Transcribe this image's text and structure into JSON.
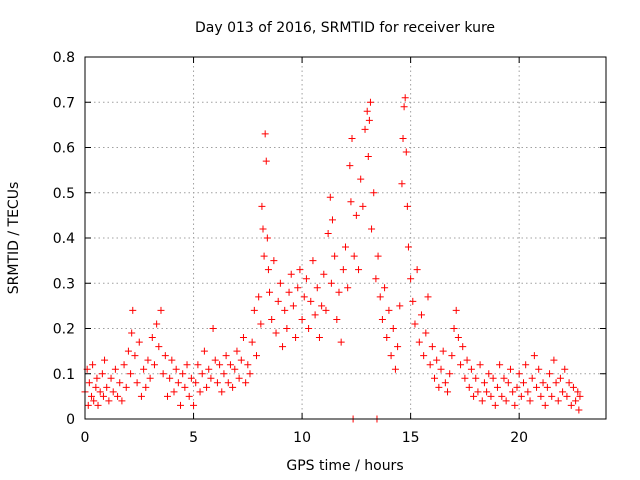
{
  "chart_data": {
    "type": "scatter",
    "title": "Day 013 of 2016, SRMTID for receiver kure",
    "xlabel": "GPS time / hours",
    "ylabel": "SRMTID / TECUs",
    "xlim": [
      0,
      24
    ],
    "ylim": [
      0,
      0.8
    ],
    "xticks": [
      0,
      5,
      10,
      15,
      20
    ],
    "yticks": [
      0,
      0.1,
      0.2,
      0.3,
      0.4,
      0.5,
      0.6,
      0.7,
      0.8
    ],
    "xtick_labels": [
      "0",
      "5",
      "10",
      "15",
      "20"
    ],
    "ytick_labels": [
      "0",
      "0.1",
      "0.2",
      "0.3",
      "0.4",
      "0.5",
      "0.6",
      "0.7",
      "0.8"
    ],
    "grid": true,
    "marker": "+",
    "color": "#ff0000",
    "series": [
      {
        "name": "SRMTID",
        "points": [
          [
            0.0,
            0.06
          ],
          [
            0.1,
            0.11
          ],
          [
            0.15,
            0.03
          ],
          [
            0.2,
            0.08
          ],
          [
            0.3,
            0.05
          ],
          [
            0.35,
            0.12
          ],
          [
            0.4,
            0.04
          ],
          [
            0.5,
            0.07
          ],
          [
            0.55,
            0.09
          ],
          [
            0.6,
            0.03
          ],
          [
            0.7,
            0.06
          ],
          [
            0.8,
            0.1
          ],
          [
            0.85,
            0.05
          ],
          [
            0.9,
            0.13
          ],
          [
            1.0,
            0.07
          ],
          [
            1.1,
            0.04
          ],
          [
            1.2,
            0.09
          ],
          [
            1.3,
            0.06
          ],
          [
            1.4,
            0.11
          ],
          [
            1.5,
            0.05
          ],
          [
            1.6,
            0.08
          ],
          [
            1.7,
            0.04
          ],
          [
            1.8,
            0.12
          ],
          [
            1.9,
            0.07
          ],
          [
            2.0,
            0.15
          ],
          [
            2.1,
            0.1
          ],
          [
            2.15,
            0.19
          ],
          [
            2.2,
            0.24
          ],
          [
            2.3,
            0.14
          ],
          [
            2.4,
            0.08
          ],
          [
            2.5,
            0.17
          ],
          [
            2.6,
            0.05
          ],
          [
            2.7,
            0.11
          ],
          [
            2.8,
            0.07
          ],
          [
            2.9,
            0.13
          ],
          [
            3.0,
            0.09
          ],
          [
            3.1,
            0.18
          ],
          [
            3.2,
            0.12
          ],
          [
            3.3,
            0.21
          ],
          [
            3.4,
            0.16
          ],
          [
            3.5,
            0.24
          ],
          [
            3.6,
            0.1
          ],
          [
            3.7,
            0.14
          ],
          [
            3.8,
            0.05
          ],
          [
            3.9,
            0.09
          ],
          [
            4.0,
            0.13
          ],
          [
            4.1,
            0.06
          ],
          [
            4.2,
            0.11
          ],
          [
            4.3,
            0.08
          ],
          [
            4.4,
            0.03
          ],
          [
            4.5,
            0.1
          ],
          [
            4.6,
            0.07
          ],
          [
            4.7,
            0.12
          ],
          [
            4.8,
            0.05
          ],
          [
            4.9,
            0.09
          ],
          [
            5.0,
            0.03
          ],
          [
            5.1,
            0.08
          ],
          [
            5.2,
            0.12
          ],
          [
            5.3,
            0.06
          ],
          [
            5.4,
            0.1
          ],
          [
            5.5,
            0.15
          ],
          [
            5.6,
            0.07
          ],
          [
            5.7,
            0.11
          ],
          [
            5.8,
            0.09
          ],
          [
            5.9,
            0.2
          ],
          [
            6.0,
            0.13
          ],
          [
            6.1,
            0.08
          ],
          [
            6.2,
            0.12
          ],
          [
            6.3,
            0.06
          ],
          [
            6.4,
            0.1
          ],
          [
            6.5,
            0.14
          ],
          [
            6.6,
            0.08
          ],
          [
            6.7,
            0.12
          ],
          [
            6.8,
            0.07
          ],
          [
            6.9,
            0.11
          ],
          [
            7.0,
            0.15
          ],
          [
            7.1,
            0.09
          ],
          [
            7.2,
            0.13
          ],
          [
            7.3,
            0.18
          ],
          [
            7.4,
            0.08
          ],
          [
            7.5,
            0.12
          ],
          [
            7.6,
            0.1
          ],
          [
            7.7,
            0.17
          ],
          [
            7.8,
            0.24
          ],
          [
            7.9,
            0.14
          ],
          [
            8.0,
            0.27
          ],
          [
            8.1,
            0.21
          ],
          [
            8.15,
            0.47
          ],
          [
            8.2,
            0.42
          ],
          [
            8.25,
            0.36
          ],
          [
            8.3,
            0.63
          ],
          [
            8.35,
            0.57
          ],
          [
            8.4,
            0.4
          ],
          [
            8.45,
            0.33
          ],
          [
            8.5,
            0.28
          ],
          [
            8.6,
            0.22
          ],
          [
            8.7,
            0.35
          ],
          [
            8.8,
            0.19
          ],
          [
            8.9,
            0.26
          ],
          [
            9.0,
            0.3
          ],
          [
            9.1,
            0.16
          ],
          [
            9.2,
            0.24
          ],
          [
            9.3,
            0.2
          ],
          [
            9.4,
            0.28
          ],
          [
            9.5,
            0.32
          ],
          [
            9.6,
            0.25
          ],
          [
            9.7,
            0.18
          ],
          [
            9.8,
            0.29
          ],
          [
            9.9,
            0.33
          ],
          [
            10.0,
            0.22
          ],
          [
            10.1,
            0.27
          ],
          [
            10.2,
            0.31
          ],
          [
            10.3,
            0.2
          ],
          [
            10.4,
            0.26
          ],
          [
            10.5,
            0.35
          ],
          [
            10.6,
            0.23
          ],
          [
            10.7,
            0.29
          ],
          [
            10.8,
            0.18
          ],
          [
            10.9,
            0.25
          ],
          [
            11.0,
            0.32
          ],
          [
            11.1,
            0.24
          ],
          [
            11.2,
            0.41
          ],
          [
            11.3,
            0.49
          ],
          [
            11.35,
            0.3
          ],
          [
            11.4,
            0.44
          ],
          [
            11.5,
            0.36
          ],
          [
            11.6,
            0.22
          ],
          [
            11.7,
            0.28
          ],
          [
            11.8,
            0.17
          ],
          [
            11.9,
            0.33
          ],
          [
            12.0,
            0.38
          ],
          [
            12.1,
            0.29
          ],
          [
            12.2,
            0.56
          ],
          [
            12.25,
            0.48
          ],
          [
            12.3,
            0.62
          ],
          [
            12.35,
            0.0
          ],
          [
            12.4,
            0.36
          ],
          [
            12.5,
            0.45
          ],
          [
            12.6,
            0.33
          ],
          [
            12.7,
            0.53
          ],
          [
            12.8,
            0.47
          ],
          [
            12.9,
            0.64
          ],
          [
            13.0,
            0.68
          ],
          [
            13.05,
            0.58
          ],
          [
            13.1,
            0.66
          ],
          [
            13.15,
            0.7
          ],
          [
            13.2,
            0.42
          ],
          [
            13.3,
            0.5
          ],
          [
            13.4,
            0.31
          ],
          [
            13.45,
            0.0
          ],
          [
            13.5,
            0.36
          ],
          [
            13.6,
            0.27
          ],
          [
            13.7,
            0.22
          ],
          [
            13.8,
            0.29
          ],
          [
            13.9,
            0.18
          ],
          [
            14.0,
            0.24
          ],
          [
            14.1,
            0.14
          ],
          [
            14.2,
            0.2
          ],
          [
            14.3,
            0.11
          ],
          [
            14.4,
            0.16
          ],
          [
            14.5,
            0.25
          ],
          [
            14.6,
            0.52
          ],
          [
            14.65,
            0.62
          ],
          [
            14.7,
            0.69
          ],
          [
            14.75,
            0.71
          ],
          [
            14.8,
            0.59
          ],
          [
            14.85,
            0.47
          ],
          [
            14.9,
            0.38
          ],
          [
            15.0,
            0.31
          ],
          [
            15.1,
            0.26
          ],
          [
            15.2,
            0.21
          ],
          [
            15.3,
            0.33
          ],
          [
            15.4,
            0.17
          ],
          [
            15.5,
            0.23
          ],
          [
            15.6,
            0.14
          ],
          [
            15.7,
            0.19
          ],
          [
            15.8,
            0.27
          ],
          [
            15.9,
            0.12
          ],
          [
            16.0,
            0.16
          ],
          [
            16.1,
            0.09
          ],
          [
            16.2,
            0.13
          ],
          [
            16.3,
            0.07
          ],
          [
            16.4,
            0.11
          ],
          [
            16.5,
            0.15
          ],
          [
            16.6,
            0.08
          ],
          [
            16.7,
            0.06
          ],
          [
            16.8,
            0.1
          ],
          [
            16.9,
            0.14
          ],
          [
            17.0,
            0.2
          ],
          [
            17.1,
            0.24
          ],
          [
            17.2,
            0.18
          ],
          [
            17.3,
            0.12
          ],
          [
            17.4,
            0.16
          ],
          [
            17.5,
            0.09
          ],
          [
            17.6,
            0.13
          ],
          [
            17.7,
            0.07
          ],
          [
            17.8,
            0.11
          ],
          [
            17.9,
            0.05
          ],
          [
            18.0,
            0.09
          ],
          [
            18.1,
            0.06
          ],
          [
            18.2,
            0.12
          ],
          [
            18.3,
            0.04
          ],
          [
            18.4,
            0.08
          ],
          [
            18.5,
            0.06
          ],
          [
            18.6,
            0.1
          ],
          [
            18.7,
            0.05
          ],
          [
            18.8,
            0.09
          ],
          [
            18.9,
            0.03
          ],
          [
            19.0,
            0.07
          ],
          [
            19.1,
            0.12
          ],
          [
            19.2,
            0.05
          ],
          [
            19.3,
            0.09
          ],
          [
            19.4,
            0.04
          ],
          [
            19.5,
            0.08
          ],
          [
            19.6,
            0.11
          ],
          [
            19.7,
            0.06
          ],
          [
            19.8,
            0.03
          ],
          [
            19.9,
            0.07
          ],
          [
            20.0,
            0.1
          ],
          [
            20.1,
            0.05
          ],
          [
            20.2,
            0.08
          ],
          [
            20.3,
            0.12
          ],
          [
            20.4,
            0.06
          ],
          [
            20.5,
            0.04
          ],
          [
            20.6,
            0.09
          ],
          [
            20.7,
            0.14
          ],
          [
            20.8,
            0.07
          ],
          [
            20.9,
            0.11
          ],
          [
            21.0,
            0.05
          ],
          [
            21.1,
            0.08
          ],
          [
            21.2,
            0.03
          ],
          [
            21.3,
            0.07
          ],
          [
            21.4,
            0.1
          ],
          [
            21.5,
            0.05
          ],
          [
            21.6,
            0.13
          ],
          [
            21.7,
            0.08
          ],
          [
            21.8,
            0.04
          ],
          [
            21.9,
            0.09
          ],
          [
            22.0,
            0.06
          ],
          [
            22.1,
            0.11
          ],
          [
            22.2,
            0.05
          ],
          [
            22.3,
            0.08
          ],
          [
            22.4,
            0.03
          ],
          [
            22.5,
            0.07
          ],
          [
            22.6,
            0.04
          ],
          [
            22.7,
            0.06
          ],
          [
            22.75,
            0.02
          ],
          [
            22.8,
            0.05
          ]
        ]
      }
    ]
  }
}
